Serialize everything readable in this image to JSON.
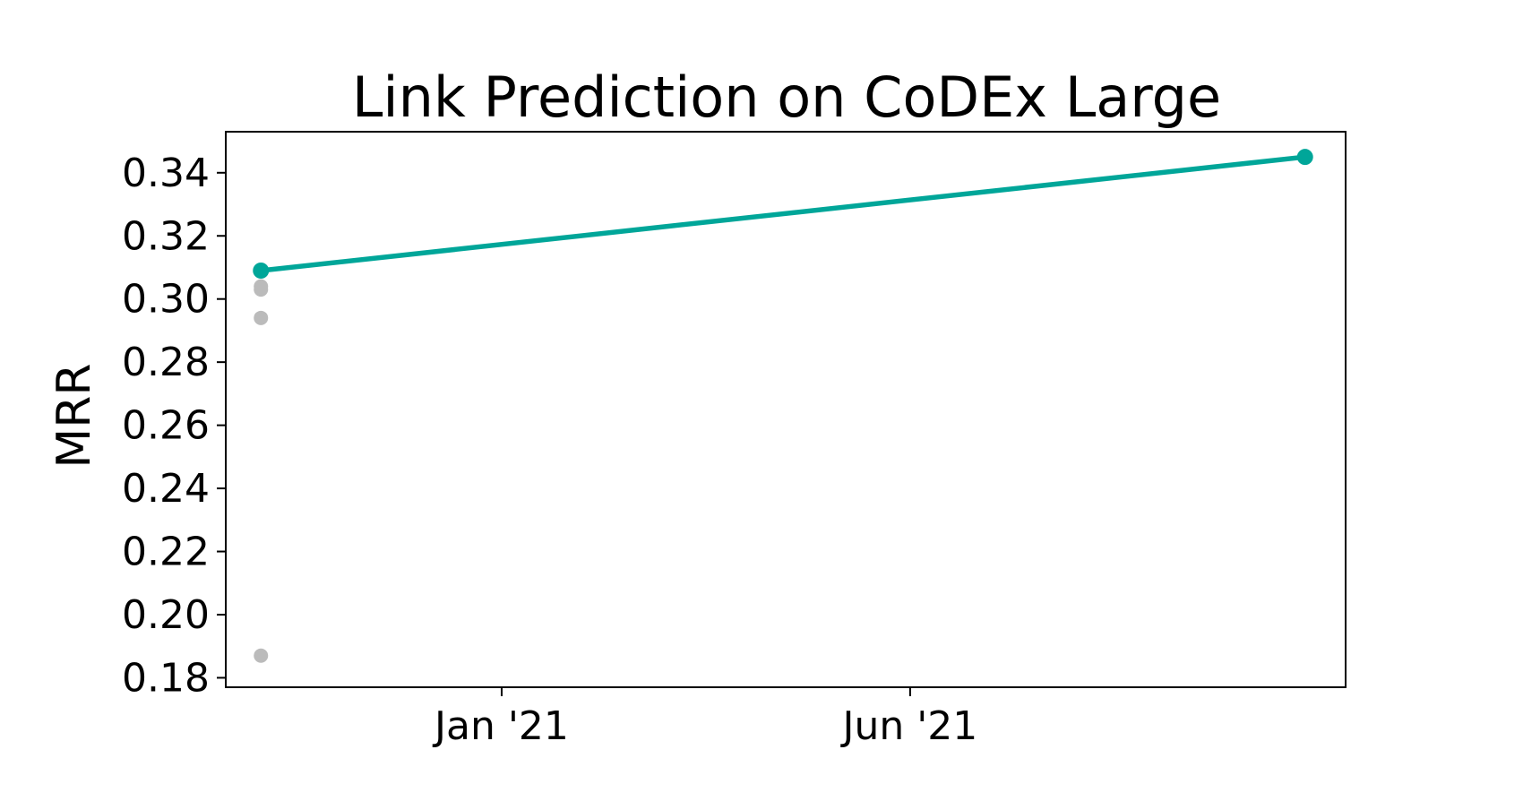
{
  "chart_data": {
    "type": "scatter",
    "title": "Link Prediction on CoDEx Large",
    "xlabel": "",
    "ylabel": "MRR",
    "x_tick_labels": [
      {
        "date": "2021-01-01",
        "label": "Jan '21"
      },
      {
        "date": "2021-06-01",
        "label": "Jun '21"
      }
    ],
    "xlim": [
      "2020-09-21",
      "2021-11-09"
    ],
    "ylim": [
      0.177,
      0.353
    ],
    "y_ticks": [
      0.18,
      0.2,
      0.22,
      0.24,
      0.26,
      0.28,
      0.3,
      0.32,
      0.34
    ],
    "y_tick_labels": [
      "0.18",
      "0.20",
      "0.22",
      "0.24",
      "0.26",
      "0.28",
      "0.30",
      "0.32",
      "0.34"
    ],
    "grid": false,
    "legend": "none",
    "series": [
      {
        "role": "other results",
        "color": "#bbbbbb",
        "points": [
          {
            "x": "2020-10-04",
            "y": 0.304
          },
          {
            "x": "2020-10-04",
            "y": 0.303
          },
          {
            "x": "2020-10-04",
            "y": 0.294
          },
          {
            "x": "2020-10-04",
            "y": 0.187
          }
        ]
      },
      {
        "role": "state of the art",
        "color": "#00a699",
        "connected": true,
        "points": [
          {
            "x": "2020-10-04",
            "y": 0.309
          },
          {
            "x": "2021-10-25",
            "y": 0.345
          }
        ]
      }
    ]
  }
}
